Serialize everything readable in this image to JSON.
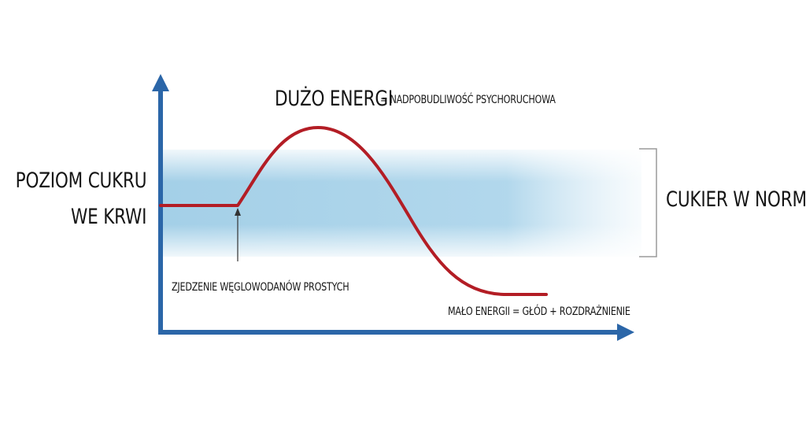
{
  "colors": {
    "axis": "#2b66a8",
    "curve": "#b31d25",
    "normal_band": "#9fcde6",
    "text": "#151515"
  },
  "labels": {
    "y_axis_line1": "POZIOM CUKRU",
    "y_axis_line2": "WE KRWI",
    "high_energy": "DUŻO ENERGI",
    "high_energy_desc": "= NADPOBUDLIWOŚĆ PSYCHORUCHOWA",
    "normal_range": "CUKIER W NORMIE",
    "trigger": "ZJEDZENIE WĘGLOWODANÓW PROSTYCH",
    "low_energy": "MAŁO ENERGII = GŁÓD + ROZDRAŻNIENIE"
  }
}
